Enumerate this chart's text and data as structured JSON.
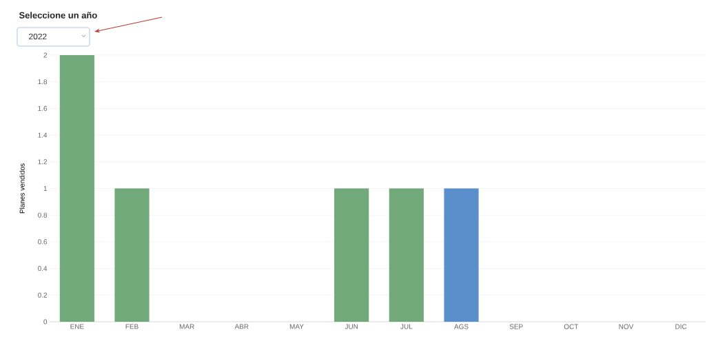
{
  "chart_data": {
    "type": "bar",
    "title": "Seleccione un año",
    "annotations": [
      "2022"
    ],
    "ylabel": "Planes vendidos",
    "categories": [
      "ENE",
      "FEB",
      "MAR",
      "ABR",
      "MAY",
      "JUN",
      "JUL",
      "AGS",
      "SEP",
      "OCT",
      "NOV",
      "DIC"
    ],
    "values": [
      2,
      1,
      0,
      0,
      0,
      1,
      1,
      1,
      0,
      0,
      0,
      0
    ],
    "colors": [
      "#72a97a",
      "#72a97a",
      "#72a97a",
      "#72a97a",
      "#72a97a",
      "#72a97a",
      "#72a97a",
      "#5b8fcb",
      "#72a97a",
      "#72a97a",
      "#72a97a",
      "#72a97a"
    ],
    "ylim": [
      0,
      2
    ],
    "yticks": [
      0,
      0.2,
      0.4,
      0.6,
      0.8,
      1,
      1.2,
      1.4,
      1.6,
      1.8,
      2
    ],
    "grid": "y"
  }
}
